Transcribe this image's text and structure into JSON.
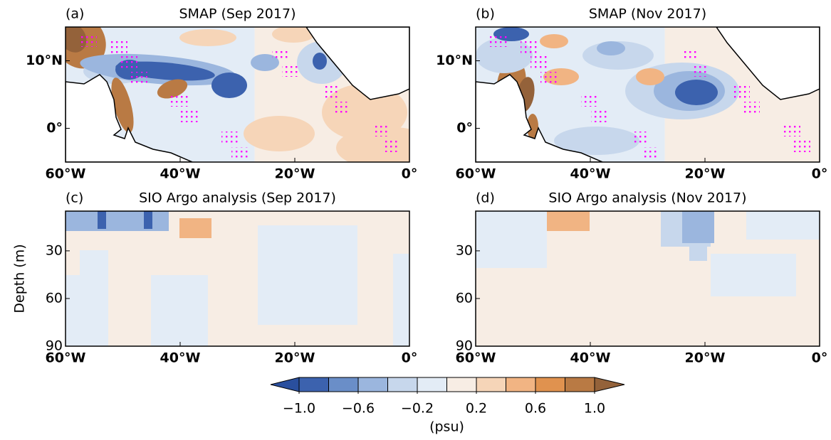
{
  "chart_data": [
    {
      "type": "map",
      "label": "(a)",
      "title": "SMAP (Sep 2017)",
      "xlim": [
        -60,
        0
      ],
      "ylim": [
        -5,
        15
      ],
      "xticks": [
        {
          "value": -60,
          "label": "60°W"
        },
        {
          "value": -40,
          "label": "40°W"
        },
        {
          "value": -20,
          "label": "20°W"
        },
        {
          "value": 0,
          "label": "0°"
        }
      ],
      "yticks": [
        {
          "value": 0,
          "label": "0°"
        },
        {
          "value": 10,
          "label": "10°N"
        }
      ]
    },
    {
      "type": "map",
      "label": "(b)",
      "title": "SMAP (Nov 2017)",
      "xlim": [
        -60,
        0
      ],
      "ylim": [
        -5,
        15
      ],
      "xticks": [
        {
          "value": -60,
          "label": "60°W"
        },
        {
          "value": -40,
          "label": "40°W"
        },
        {
          "value": -20,
          "label": "20°W"
        },
        {
          "value": 0,
          "label": "0°"
        }
      ],
      "yticks": [
        {
          "value": 0,
          "label": "0°"
        },
        {
          "value": 10,
          "label": "10°N"
        }
      ]
    },
    {
      "type": "section",
      "label": "(c)",
      "title": "SIO Argo analysis (Sep 2017)",
      "ylabel": "Depth (m)",
      "xlim": [
        -60,
        0
      ],
      "ylim": [
        90,
        5
      ],
      "xticks": [
        {
          "value": -60,
          "label": "60°W"
        },
        {
          "value": -40,
          "label": "40°W"
        },
        {
          "value": -20,
          "label": "20°W"
        },
        {
          "value": 0,
          "label": "0°"
        }
      ],
      "yticks": [
        30,
        60,
        90
      ]
    },
    {
      "type": "section",
      "label": "(d)",
      "title": "SIO Argo analysis (Nov 2017)",
      "xlim": [
        -60,
        0
      ],
      "ylim": [
        90,
        5
      ],
      "xticks": [
        {
          "value": -60,
          "label": "60°W"
        },
        {
          "value": -40,
          "label": "40°W"
        },
        {
          "value": -20,
          "label": "20°W"
        },
        {
          "value": 0,
          "label": "0°"
        }
      ],
      "yticks": [
        30,
        60,
        90
      ]
    }
  ],
  "colorbar": {
    "unit": "(psu)",
    "levels": [
      -1.0,
      -0.8,
      -0.6,
      -0.4,
      -0.2,
      0.0,
      0.2,
      0.4,
      0.6,
      0.8,
      1.0
    ],
    "colors": [
      "#2a4f9e",
      "#3c62ae",
      "#6a8ec8",
      "#9bb6de",
      "#c7d7ec",
      "#e3ecf6",
      "#f7ede4",
      "#f6d5b8",
      "#f1b483",
      "#e0924f",
      "#b97a44",
      "#94623a"
    ],
    "ticks": [
      {
        "value": -1.0,
        "label": "−1.0"
      },
      {
        "value": -0.6,
        "label": "−0.6"
      },
      {
        "value": -0.2,
        "label": "−0.2"
      },
      0.2,
      0.6,
      {
        "value": 1.0,
        "label": "1.0"
      }
    ]
  }
}
